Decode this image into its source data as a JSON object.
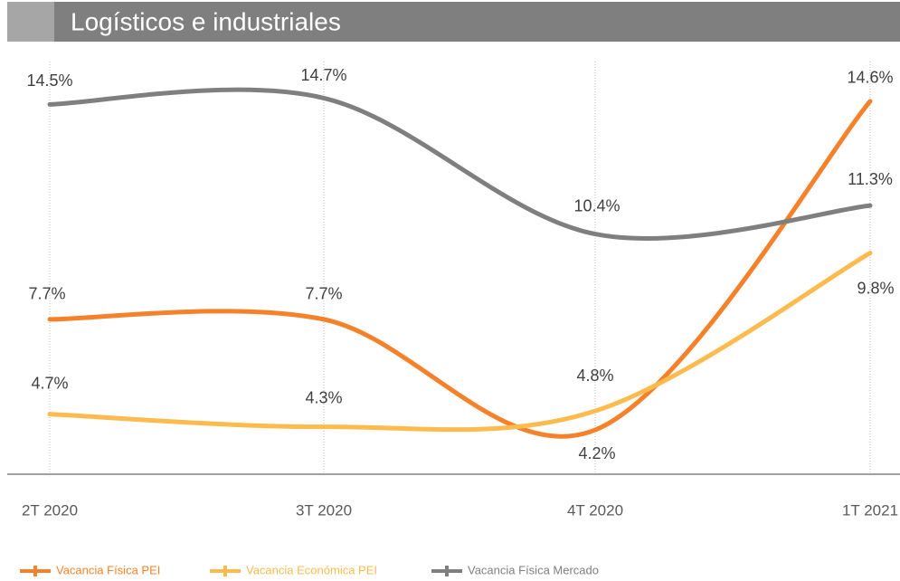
{
  "chart_data": {
    "type": "line",
    "title": "Logísticos e industriales",
    "categories": [
      "2T 2020",
      "3T 2020",
      "4T 2020",
      "1T 2021"
    ],
    "series": [
      {
        "name": "Vacancia Física PEI",
        "color": "#f5822a",
        "values": [
          7.7,
          7.7,
          4.2,
          14.6
        ],
        "value_labels": [
          "7.7%",
          "7.7%",
          "4.2%",
          "14.6%"
        ]
      },
      {
        "name": "Vacancia Económica PEI",
        "color": "#fdbb4e",
        "values": [
          4.7,
          4.3,
          4.8,
          9.8
        ],
        "value_labels": [
          "4.7%",
          "4.3%",
          "4.8%",
          "9.8%"
        ]
      },
      {
        "name": "Vacancia Física Mercado",
        "color": "#7f7f7f",
        "values": [
          14.5,
          14.7,
          10.4,
          11.3
        ],
        "value_labels": [
          "14.5%",
          "14.7%",
          "10.4%",
          "11.3%"
        ]
      }
    ],
    "ylim": [
      2.8,
      16
    ],
    "smooth": true,
    "legend": "bottom"
  }
}
